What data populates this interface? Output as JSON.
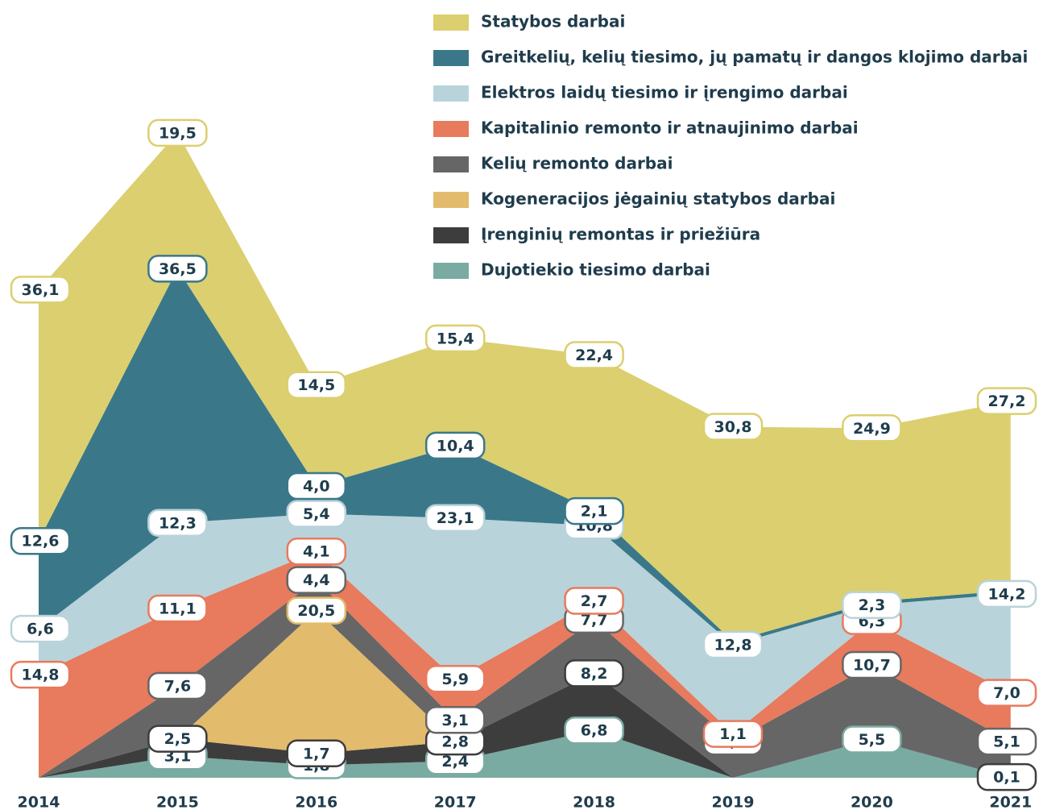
{
  "chart_data": {
    "type": "stacked_area",
    "categories": [
      "2014",
      "2015",
      "2016",
      "2017",
      "2018",
      "2019",
      "2020",
      "2021"
    ],
    "series": [
      {
        "name": "Dujotiekio tiesimo darbai",
        "color": "#7aaba3",
        "values": [
          0,
          3.1,
          1.8,
          2.4,
          6.8,
          0,
          5.5,
          0
        ],
        "value_labels": [
          null,
          "3,1",
          "1,8",
          "2,4",
          "6,8",
          null,
          "5,5",
          null
        ]
      },
      {
        "name": "Įrenginių remontas ir priežiūra",
        "color": "#3d3d3d",
        "values": [
          0,
          2.5,
          1.7,
          2.8,
          8.2,
          0,
          0,
          0.1
        ],
        "value_labels": [
          null,
          "2,5",
          "1,7",
          "2,8",
          "8,2",
          null,
          null,
          "0,1"
        ]
      },
      {
        "name": "Kogeneracijos jėgainių statybos darbai",
        "color": "#e2bb6c",
        "values": [
          0,
          0,
          20.5,
          0,
          0,
          0,
          0,
          0
        ],
        "value_labels": [
          null,
          null,
          "20,5",
          null,
          null,
          null,
          null,
          null
        ]
      },
      {
        "name": "Kelių remonto darbai",
        "color": "#666666",
        "values": [
          0,
          7.6,
          4.4,
          3.1,
          7.7,
          5.2,
          10.7,
          5.1
        ],
        "value_labels": [
          null,
          "7,6",
          "4,4",
          "3,1",
          "7,7",
          "5,2",
          "10,7",
          "5,1"
        ]
      },
      {
        "name": "Kapitalinio remonto ir atnaujinimo darbai",
        "color": "#e87a5d",
        "values": [
          14.8,
          11.1,
          4.1,
          5.9,
          2.7,
          1.1,
          6.3,
          7.0
        ],
        "value_labels": [
          "14,8",
          "11,1",
          "4,1",
          "5,9",
          "2,7",
          "1,1",
          "6,3",
          "7,0"
        ]
      },
      {
        "name": "Elektros laidų tiesimo ir įrengimo darbai",
        "color": "#b9d3da",
        "values": [
          6.6,
          12.3,
          5.4,
          23.1,
          10.8,
          12.8,
          2.3,
          14.2
        ],
        "value_labels": [
          "6,6",
          "12,3",
          "5,4",
          "23,1",
          "10,8",
          "12,8",
          "2,3",
          "14,2"
        ]
      },
      {
        "name": "Greitkelių, kelių tiesimo, jų pamatų ir dangos klojimo darbai",
        "color": "#3a7889",
        "values": [
          12.6,
          36.5,
          4.0,
          10.4,
          2.1,
          0.5,
          0.5,
          0.5
        ],
        "value_labels": [
          "12,6",
          "36,5",
          "4,0",
          "10,4",
          "2,1",
          null,
          null,
          null
        ]
      },
      {
        "name": "Statybos darbai",
        "color": "#dbcf6f",
        "values": [
          36.1,
          19.5,
          14.5,
          15.4,
          22.4,
          30.8,
          24.9,
          27.2
        ],
        "value_labels": [
          "36,1",
          "19,5",
          "14,5",
          "15,4",
          "22,4",
          "30,8",
          "24,9",
          "27,2"
        ]
      }
    ]
  }
}
